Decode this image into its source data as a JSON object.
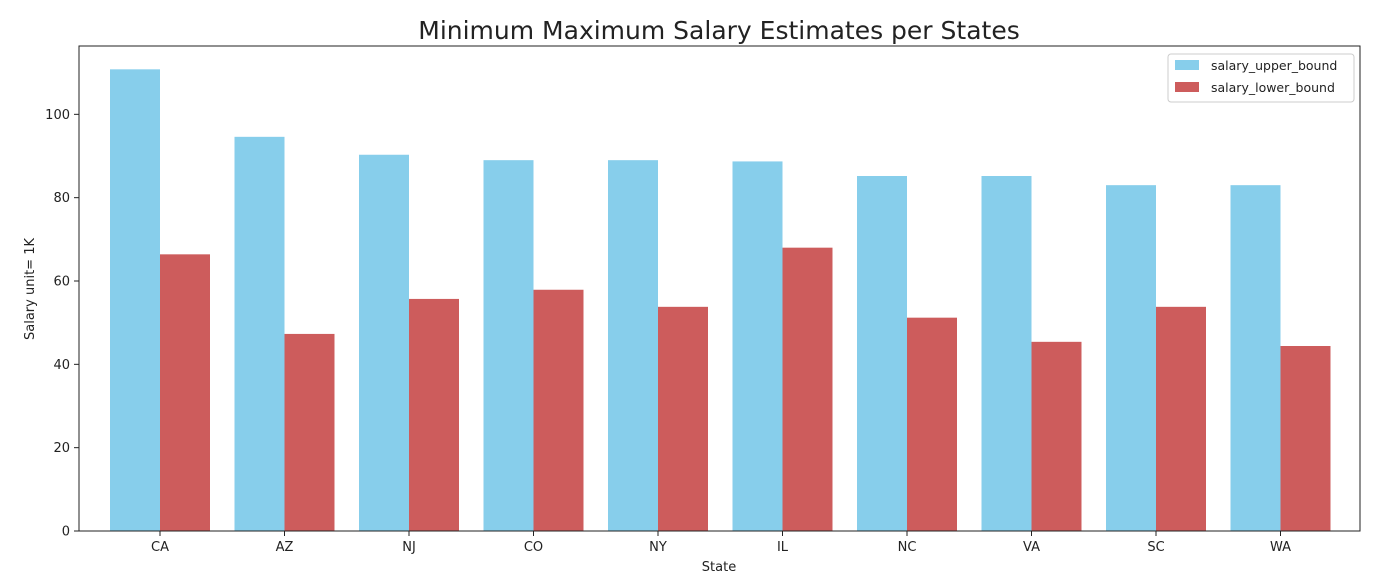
{
  "chart_data": {
    "type": "bar",
    "title": "Minimum Maximum Salary Estimates per States",
    "xlabel": "State",
    "ylabel": "Salary unit= 1K",
    "categories": [
      "CA",
      "AZ",
      "NJ",
      "CO",
      "NY",
      "IL",
      "NC",
      "VA",
      "SC",
      "WA"
    ],
    "series": [
      {
        "name": "salary_upper_bound",
        "color": "#87ceeb",
        "values": [
          110.8,
          94.6,
          90.3,
          89.0,
          89.0,
          88.7,
          85.2,
          85.2,
          83.0,
          83.0
        ]
      },
      {
        "name": "salary_lower_bound",
        "color": "#cd5c5c",
        "values": [
          66.4,
          47.3,
          55.7,
          57.9,
          53.8,
          68.0,
          51.2,
          45.4,
          53.8,
          44.4
        ]
      }
    ],
    "ylim": [
      0,
      116.4
    ],
    "yticks": [
      0,
      20,
      40,
      60,
      80,
      100
    ],
    "grid": false,
    "legend_position": "top-right"
  }
}
